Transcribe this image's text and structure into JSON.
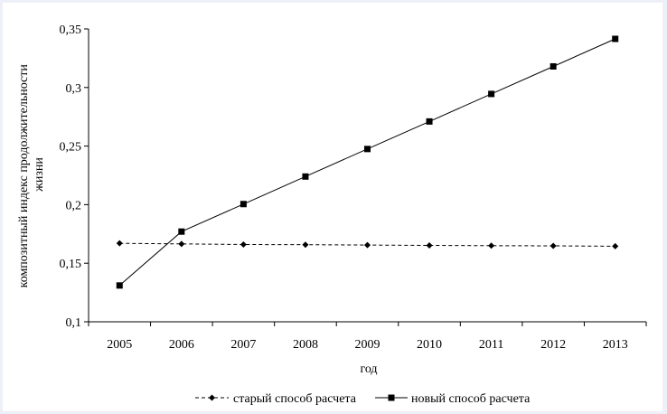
{
  "chart_data": {
    "type": "line",
    "x": [
      "2005",
      "2006",
      "2007",
      "2008",
      "2009",
      "2010",
      "2011",
      "2012",
      "2013"
    ],
    "series": [
      {
        "name": "старый способ расчета",
        "values": [
          0.167,
          0.1665,
          0.166,
          0.1658,
          0.1655,
          0.1652,
          0.165,
          0.1648,
          0.1645
        ],
        "marker": "diamond",
        "line": "dashed",
        "color": "#000000"
      },
      {
        "name": "новый способ расчета",
        "values": [
          0.131,
          0.177,
          0.2005,
          0.224,
          0.2475,
          0.271,
          0.2945,
          0.318,
          0.3415
        ],
        "marker": "square",
        "line": "solid",
        "color": "#000000"
      }
    ],
    "xlabel": "год",
    "ylabel_lines": [
      "композитный индекс продолжительности",
      "жизни"
    ],
    "ylim": [
      0.1,
      0.35
    ],
    "yticks": [
      "0,1",
      "0,15",
      "0,2",
      "0,25",
      "0,3",
      "0,35"
    ],
    "ytick_values": [
      0.1,
      0.15,
      0.2,
      0.25,
      0.3,
      0.35
    ],
    "grid": false,
    "legend_position": "bottom"
  }
}
